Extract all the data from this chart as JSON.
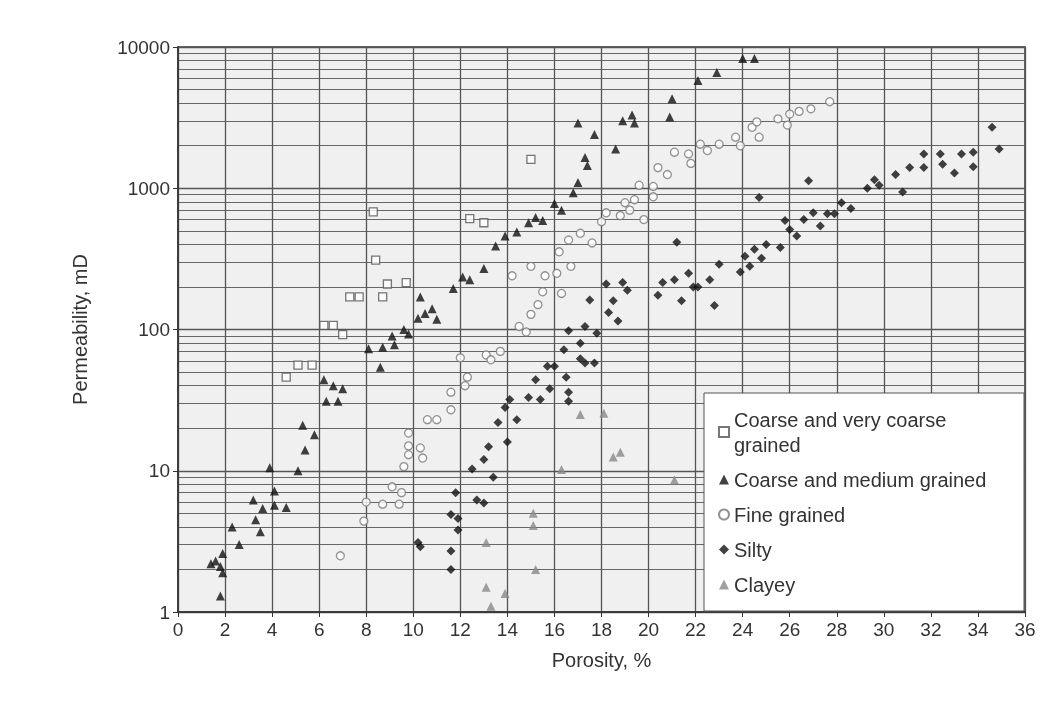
{
  "chart_data": {
    "type": "scatter",
    "xlabel": "Porosity, %",
    "ylabel": "Permeability, mD",
    "log": "y",
    "grid": true,
    "legend": "bottom right",
    "xlim": [
      0,
      36
    ],
    "xticks": [
      0,
      2,
      4,
      6,
      8,
      10,
      12,
      14,
      16,
      18,
      20,
      22,
      24,
      26,
      28,
      30,
      32,
      34,
      36
    ],
    "ylim": [
      1,
      10000
    ],
    "yticks": [
      1,
      10,
      100,
      1000,
      10000
    ],
    "series": [
      {
        "name": "Coarse and very coarse grained",
        "marker": "square",
        "color": "#555555",
        "x": [
          4.6,
          5.1,
          5.7,
          6.2,
          6.6,
          7,
          7.3,
          7.7,
          8.3,
          8.4,
          8.7,
          8.9,
          9.7,
          12.4,
          13,
          15
        ],
        "values": [
          46,
          56,
          56,
          107,
          107,
          92,
          170,
          170,
          680,
          310,
          170,
          210,
          215,
          610,
          570,
          1600
        ]
      },
      {
        "name": "Coarse and medium grained",
        "marker": "triangle",
        "color": "#111111",
        "x": [
          1.4,
          1.6,
          1.9,
          1.8,
          1.9,
          1.8,
          2.3,
          2.6,
          3.2,
          3.3,
          3.5,
          3.6,
          3.9,
          4.1,
          4.1,
          4.6,
          5.1,
          5.3,
          5.4,
          5.8,
          6.2,
          6.3,
          6.6,
          6.8,
          7,
          8.1,
          8.6,
          8.7,
          9.1,
          9.2,
          9.6,
          9.8,
          10.2,
          10.3,
          10.5,
          10.8,
          11,
          11.7,
          12.1,
          12.4,
          13,
          13.5,
          13.9,
          14.4,
          14.9,
          15.2,
          15.5,
          16,
          16.3,
          16.8,
          17,
          17,
          17.3,
          17.4,
          17.7,
          18.6,
          18.9,
          19.3,
          19.4,
          20.9,
          21,
          22.1,
          22.9,
          24,
          24.5
        ],
        "values": [
          2.2,
          2.3,
          2.6,
          2.1,
          1.9,
          1.3,
          4,
          3,
          6.2,
          4.5,
          3.7,
          5.4,
          10.5,
          7.2,
          5.7,
          5.5,
          10,
          21,
          14,
          18,
          44,
          31,
          40,
          31,
          38,
          73,
          54,
          75,
          90,
          78,
          100,
          93,
          120,
          170,
          130,
          140,
          118,
          195,
          235,
          225,
          270,
          390,
          460,
          490,
          570,
          620,
          590,
          780,
          700,
          930,
          2900,
          1100,
          1650,
          1450,
          2400,
          1900,
          3000,
          3300,
          2900,
          3200,
          4300,
          5800,
          6600,
          8300,
          8300
        ]
      },
      {
        "name": "Fine grained",
        "marker": "circle",
        "color": "#777777",
        "x": [
          6.9,
          7.9,
          8,
          8.7,
          9.1,
          9.4,
          9.5,
          9.6,
          9.8,
          9.8,
          9.8,
          10.3,
          10.4,
          10.6,
          11,
          11.6,
          11.6,
          12,
          12.2,
          12.3,
          13.1,
          13.3,
          13.7,
          14.2,
          14.5,
          14.8,
          15,
          15,
          15.3,
          15.5,
          15.6,
          16.2,
          16.1,
          16.3,
          16.6,
          16.7,
          17.1,
          17.6,
          18,
          18.2,
          18.8,
          19,
          19.2,
          19.4,
          19.6,
          19.8,
          20.2,
          20.2,
          20.4,
          20.8,
          21.1,
          21.7,
          21.8,
          22.2,
          22.5,
          23,
          23.7,
          23.9,
          24.4,
          24.6,
          24.7,
          25.5,
          25.9,
          26,
          26.4,
          26.9,
          27.7
        ],
        "values": [
          2.5,
          4.4,
          6,
          5.8,
          7.7,
          5.8,
          7,
          10.7,
          18.5,
          15,
          13,
          14.5,
          12.3,
          23,
          23,
          36,
          27,
          63,
          40,
          46,
          66,
          61,
          70,
          240,
          105,
          96,
          280,
          128,
          150,
          185,
          240,
          355,
          250,
          180,
          430,
          280,
          480,
          410,
          580,
          670,
          640,
          790,
          700,
          830,
          1050,
          600,
          1030,
          870,
          1400,
          1250,
          1800,
          1750,
          1500,
          2050,
          1850,
          2050,
          2300,
          2000,
          2700,
          2950,
          2300,
          3100,
          2800,
          3350,
          3500,
          3650,
          4100
        ]
      },
      {
        "name": "Silty",
        "marker": "diamond",
        "color": "#111111",
        "x": [
          10.2,
          10.3,
          11.6,
          11.6,
          11.6,
          11.8,
          11.9,
          11.9,
          12.5,
          12.7,
          13,
          13,
          13.2,
          13.4,
          13.6,
          13.9,
          14,
          14.1,
          14.4,
          14.9,
          15.2,
          15.4,
          15.7,
          15.8,
          16,
          16.4,
          16.6,
          16.6,
          16.5,
          16.6,
          17.1,
          17.1,
          17.3,
          17.3,
          17.5,
          17.8,
          17.7,
          18.2,
          18.3,
          18.5,
          18.7,
          18.9,
          19.1,
          20.4,
          20.6,
          21.1,
          21.2,
          21.4,
          21.7,
          21.9,
          22.1,
          22.6,
          22.8,
          23,
          23.9,
          24.1,
          24.3,
          24.5,
          24.7,
          24.8,
          25,
          25.6,
          25.8,
          26,
          26.3,
          26.6,
          26.8,
          27,
          27.3,
          27.6,
          27.9,
          28.2,
          28.6,
          29.3,
          29.6,
          29.8,
          30.5,
          30.8,
          31.1,
          31.7,
          31.7,
          32.4,
          32.5,
          33,
          33.3,
          33.8,
          33.8,
          34.6,
          34.9
        ],
        "values": [
          3.1,
          2.9,
          4.9,
          2.7,
          2,
          7,
          4.6,
          3.8,
          10.3,
          6.2,
          5.9,
          12,
          14.8,
          9,
          22,
          28,
          16,
          32,
          23,
          33,
          44,
          32,
          55,
          38,
          55,
          72,
          98,
          36,
          46,
          31,
          80,
          62,
          105,
          58,
          162,
          94,
          58,
          210,
          132,
          160,
          115,
          215,
          190,
          175,
          215,
          225,
          415,
          160,
          250,
          200,
          200,
          225,
          148,
          290,
          255,
          330,
          280,
          370,
          860,
          320,
          400,
          380,
          590,
          510,
          460,
          600,
          1130,
          670,
          540,
          660,
          660,
          790,
          720,
          1000,
          1150,
          1050,
          1250,
          940,
          1400,
          1750,
          1400,
          1750,
          1480,
          1280,
          1750,
          1420,
          1800,
          2700,
          1900
        ]
      },
      {
        "name": "Clayey",
        "marker": "triangle",
        "color": "#888888",
        "x": [
          13.1,
          13.1,
          13.3,
          13.9,
          15.1,
          15.1,
          15.2,
          16.3,
          17.1,
          18.1,
          18.5,
          18.8,
          21.1
        ],
        "values": [
          3.1,
          1.5,
          1.1,
          1.35,
          5,
          4.1,
          2,
          10.2,
          25,
          25.5,
          12.5,
          13.5,
          8.6
        ]
      }
    ]
  }
}
